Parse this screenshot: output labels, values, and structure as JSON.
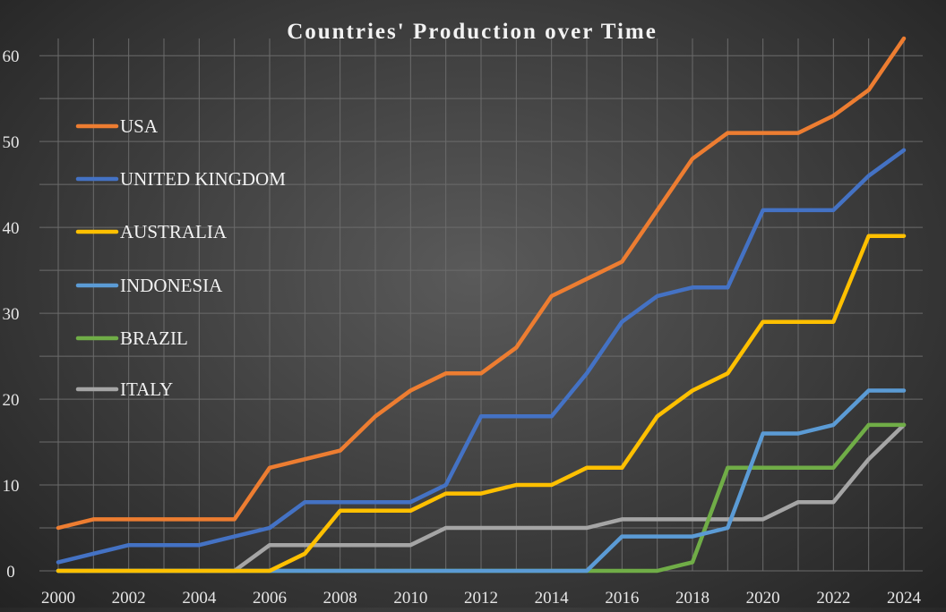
{
  "chart_data": {
    "type": "line",
    "title": "Countries' Production over Time",
    "xlabel": "",
    "ylabel": "",
    "xlim": [
      2000,
      2024
    ],
    "ylim": [
      0,
      62
    ],
    "grid": true,
    "legend_position": "top-left",
    "x": [
      2000,
      2001,
      2002,
      2003,
      2004,
      2005,
      2006,
      2007,
      2008,
      2009,
      2010,
      2011,
      2012,
      2013,
      2014,
      2015,
      2016,
      2017,
      2018,
      2019,
      2020,
      2021,
      2022,
      2023,
      2024
    ],
    "x_ticks": [
      "2000",
      "2002",
      "2004",
      "2006",
      "2008",
      "2010",
      "2012",
      "2014",
      "2016",
      "2018",
      "2020",
      "2022",
      "2024"
    ],
    "y_ticks": [
      "0",
      "10",
      "20",
      "30",
      "40",
      "50",
      "60"
    ],
    "series": [
      {
        "name": "USA",
        "color": "#ED7D31",
        "values": [
          5,
          6,
          6,
          6,
          6,
          6,
          12,
          13,
          14,
          18,
          21,
          23,
          23,
          26,
          32,
          34,
          36,
          42,
          48,
          51,
          51,
          51,
          53,
          56,
          62
        ]
      },
      {
        "name": "UNITED KINGDOM",
        "color": "#4472C4",
        "values": [
          1,
          2,
          3,
          3,
          3,
          4,
          5,
          8,
          8,
          8,
          8,
          10,
          18,
          18,
          18,
          23,
          29,
          32,
          33,
          33,
          42,
          42,
          42,
          46,
          49
        ]
      },
      {
        "name": "AUSTRALIA",
        "color": "#FFC000",
        "values": [
          0,
          0,
          0,
          0,
          0,
          0,
          0,
          2,
          7,
          7,
          7,
          9,
          9,
          10,
          10,
          12,
          12,
          18,
          21,
          23,
          29,
          29,
          29,
          39,
          39
        ]
      },
      {
        "name": "INDONESIA",
        "color": "#5B9BD5",
        "values": [
          0,
          0,
          0,
          0,
          0,
          0,
          0,
          0,
          0,
          0,
          0,
          0,
          0,
          0,
          0,
          0,
          4,
          4,
          4,
          5,
          16,
          16,
          17,
          21,
          21
        ]
      },
      {
        "name": "BRAZIL",
        "color": "#70AD47",
        "values": [
          0,
          0,
          0,
          0,
          0,
          0,
          0,
          0,
          0,
          0,
          0,
          0,
          0,
          0,
          0,
          0,
          0,
          0,
          1,
          12,
          12,
          12,
          12,
          17,
          17
        ]
      },
      {
        "name": "ITALY",
        "color": "#A5A5A5",
        "values": [
          0,
          0,
          0,
          0,
          0,
          0,
          3,
          3,
          3,
          3,
          3,
          5,
          5,
          5,
          5,
          5,
          6,
          6,
          6,
          6,
          6,
          8,
          8,
          13,
          17
        ]
      }
    ]
  }
}
